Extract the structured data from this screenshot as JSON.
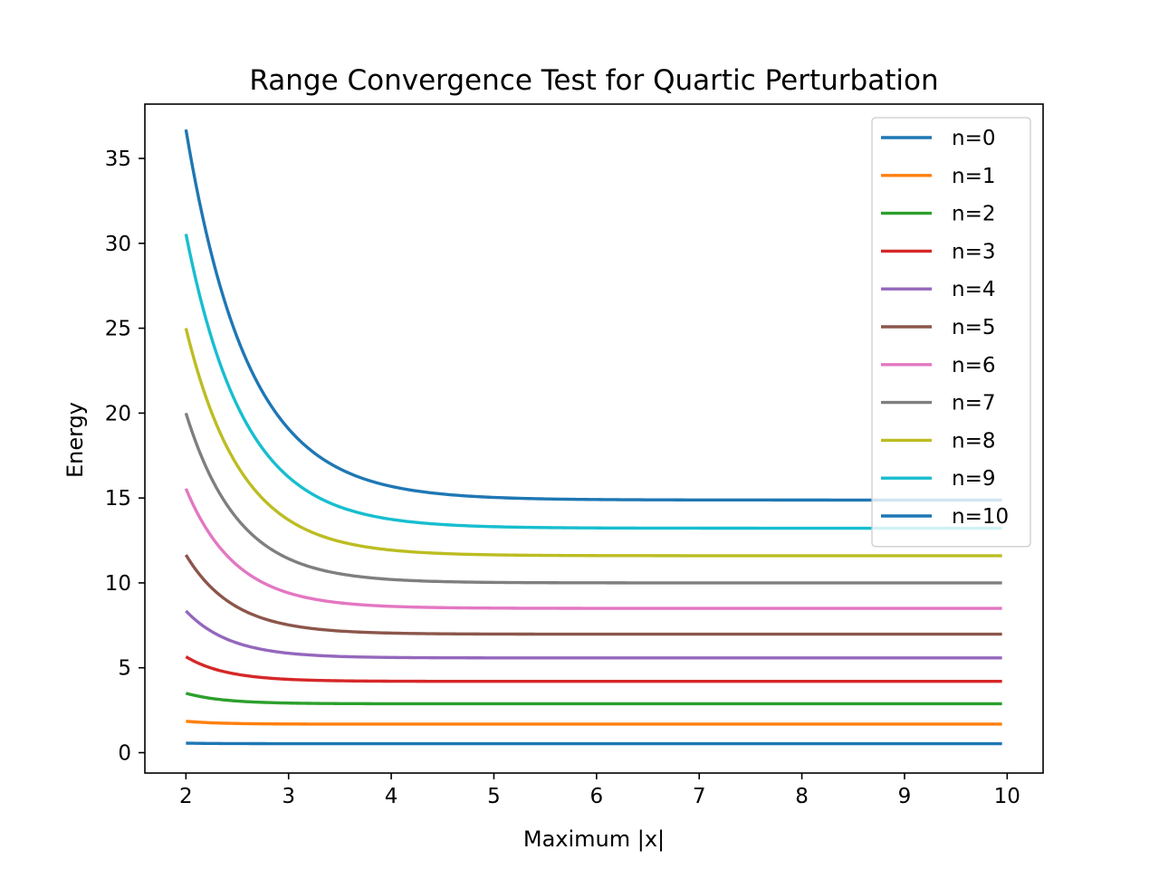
{
  "chart_data": {
    "type": "line",
    "title": "Range Convergence Test for Quartic Perturbation",
    "xlabel": "Maximum |x|",
    "ylabel": "Energy",
    "xlim": [
      1.6,
      10.35
    ],
    "ylim": [
      -1.2,
      38.2
    ],
    "xticks": [
      2,
      3,
      4,
      5,
      6,
      7,
      8,
      9,
      10
    ],
    "yticks": [
      0,
      5,
      10,
      15,
      20,
      25,
      30,
      35
    ],
    "x_range": [
      2,
      9.95
    ],
    "grid": false,
    "legend_position": "upper-right",
    "series": [
      {
        "name": "n=0",
        "color": "#1f77b4",
        "start": 0.56,
        "converged": 0.53,
        "decay": 3.5
      },
      {
        "name": "n=1",
        "color": "#ff7f0e",
        "start": 1.85,
        "converged": 1.68,
        "decay": 3.0
      },
      {
        "name": "n=2",
        "color": "#2ca02c",
        "start": 3.5,
        "converged": 2.88,
        "decay": 2.7
      },
      {
        "name": "n=3",
        "color": "#d62728",
        "start": 5.65,
        "converged": 4.2,
        "decay": 2.5
      },
      {
        "name": "n=4",
        "color": "#9467bd",
        "start": 8.35,
        "converged": 5.58,
        "decay": 2.3
      },
      {
        "name": "n=5",
        "color": "#8c564b",
        "start": 11.65,
        "converged": 6.98,
        "decay": 2.15
      },
      {
        "name": "n=6",
        "color": "#e377c2",
        "start": 15.55,
        "converged": 8.5,
        "decay": 2.05
      },
      {
        "name": "n=7",
        "color": "#7f7f7f",
        "start": 20.0,
        "converged": 10.0,
        "decay": 1.95
      },
      {
        "name": "n=8",
        "color": "#bcbd22",
        "start": 25.0,
        "converged": 11.6,
        "decay": 1.85
      },
      {
        "name": "n=9",
        "color": "#17becf",
        "start": 30.55,
        "converged": 13.22,
        "decay": 1.75
      },
      {
        "name": "n=10",
        "color": "#1f77b4",
        "start": 36.7,
        "converged": 14.88,
        "decay": 1.65
      }
    ]
  }
}
